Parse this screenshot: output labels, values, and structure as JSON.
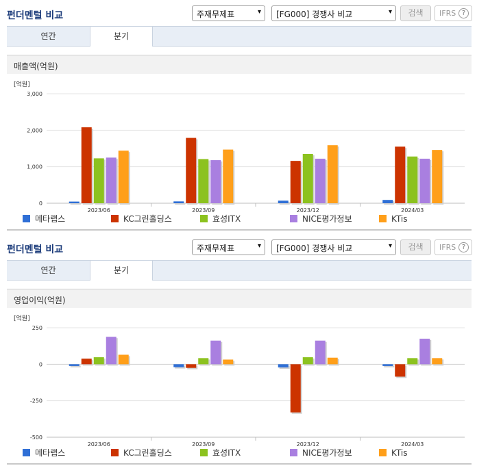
{
  "header": {
    "title": "펀더멘털 비교",
    "select_metric": "주재무제표",
    "select_compare": "[FG000] 경쟁사 비교",
    "search_label": "검색",
    "ifrs_label": "IFRS",
    "help_glyph": "?"
  },
  "tabs": [
    "연간",
    "분기"
  ],
  "active_tab": "분기",
  "legend": [
    {
      "name": "메타랩스",
      "color": "#2f6fd6"
    },
    {
      "name": "KC그린홀딩스",
      "color": "#cc3300"
    },
    {
      "name": "효성ITX",
      "color": "#8cc21f"
    },
    {
      "name": "NICE평가정보",
      "color": "#a97fe0"
    },
    {
      "name": "KTis",
      "color": "#ff9f1a"
    }
  ],
  "charts": [
    {
      "section_title": "매출액(억원)",
      "chart_data": {
        "type": "bar",
        "unit_label": "[억원]",
        "categories": [
          "2023/06",
          "2023/09",
          "2023/12",
          "2024/03"
        ],
        "ylim": [
          0,
          3000
        ],
        "ticks": [
          0,
          1000,
          2000,
          3000
        ],
        "tick_labels": [
          "0",
          "1,000",
          "2,000",
          "3,000"
        ],
        "grid": true,
        "legend_position": "bottom",
        "series": [
          {
            "name": "메타랩스",
            "values": [
              45,
              50,
              70,
              90
            ]
          },
          {
            "name": "KC그린홀딩스",
            "values": [
              2080,
              1790,
              1160,
              1550
            ]
          },
          {
            "name": "효성ITX",
            "values": [
              1230,
              1210,
              1350,
              1280
            ]
          },
          {
            "name": "NICE평가정보",
            "values": [
              1250,
              1180,
              1220,
              1220
            ]
          },
          {
            "name": "KTis",
            "values": [
              1440,
              1470,
              1590,
              1460
            ]
          }
        ]
      }
    },
    {
      "section_title": "영업이익(억원)",
      "chart_data": {
        "type": "bar",
        "unit_label": "[억원]",
        "categories": [
          "2023/06",
          "2023/09",
          "2023/12",
          "2024/03"
        ],
        "ylim": [
          -500,
          250
        ],
        "ticks": [
          -500,
          -250,
          0,
          250
        ],
        "tick_labels": [
          "-500",
          "-250",
          "0",
          "250"
        ],
        "grid": true,
        "legend_position": "bottom",
        "series": [
          {
            "name": "메타랩스",
            "values": [
              -12,
              -20,
              -22,
              -12
            ]
          },
          {
            "name": "KC그린홀딩스",
            "values": [
              38,
              -25,
              -330,
              -85
            ]
          },
          {
            "name": "효성ITX",
            "values": [
              48,
              42,
              48,
              42
            ]
          },
          {
            "name": "NICE평가정보",
            "values": [
              188,
              162,
              162,
              175
            ]
          },
          {
            "name": "KTis",
            "values": [
              65,
              32,
              45,
              42
            ]
          }
        ]
      }
    }
  ]
}
